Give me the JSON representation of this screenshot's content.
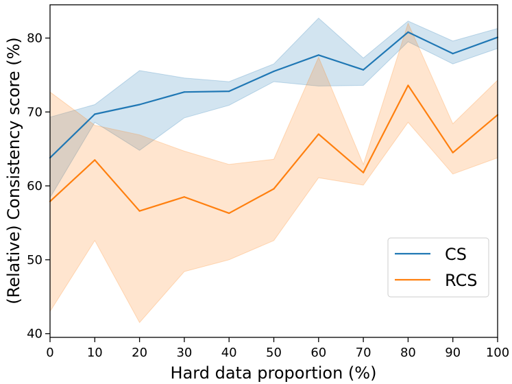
{
  "chart_data": {
    "type": "line",
    "title": "",
    "xlabel": "Hard data proportion (%)",
    "ylabel": "(Relative) Consistency score (%)",
    "xlim": [
      0,
      100
    ],
    "ylim": [
      39.5,
      84.5
    ],
    "x": [
      0,
      10,
      20,
      30,
      40,
      50,
      60,
      70,
      80,
      90,
      100
    ],
    "x_ticks": [
      0,
      10,
      20,
      30,
      40,
      50,
      60,
      70,
      80,
      90,
      100
    ],
    "y_ticks": [
      40,
      50,
      60,
      70,
      80
    ],
    "grid": false,
    "legend_position": "lower-right",
    "series": [
      {
        "name": "CS",
        "color": "#1f77b4",
        "values": [
          63.8,
          69.7,
          71.0,
          72.7,
          72.8,
          75.5,
          77.7,
          75.7,
          80.8,
          77.9,
          80.1
        ],
        "lower": [
          58.4,
          68.6,
          64.8,
          69.2,
          70.9,
          74.1,
          73.5,
          73.6,
          79.5,
          76.5,
          78.6
        ],
        "upper": [
          69.3,
          71.0,
          75.6,
          74.6,
          74.1,
          76.5,
          82.7,
          77.3,
          82.3,
          79.6,
          81.3
        ]
      },
      {
        "name": "RCS",
        "color": "#ff7f0e",
        "values": [
          57.9,
          63.5,
          56.6,
          58.5,
          56.3,
          59.6,
          67.0,
          61.8,
          73.6,
          64.5,
          69.6
        ],
        "lower": [
          43.0,
          52.6,
          41.5,
          48.4,
          50.0,
          52.6,
          61.1,
          60.1,
          68.6,
          61.6,
          63.8
        ],
        "upper": [
          72.7,
          68.2,
          66.9,
          64.7,
          62.9,
          63.6,
          77.4,
          62.9,
          82.0,
          68.4,
          74.3
        ]
      }
    ]
  }
}
